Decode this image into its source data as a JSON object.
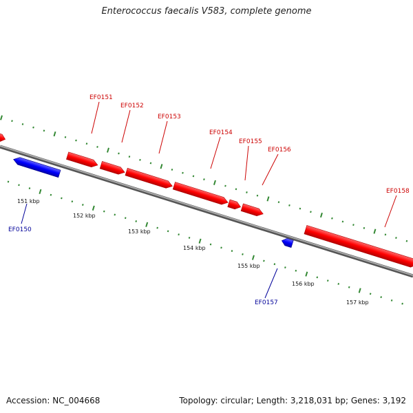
{
  "header": {
    "title": "Enterococcus faecalis V583, complete genome"
  },
  "footer": {
    "accession": "Accession: NC_004668",
    "summary": "Topology: circular; Length: 3,218,031 bp; Genes: 3,192"
  },
  "colors": {
    "forward_strand": "#ff0000",
    "reverse_strand": "#0000ff",
    "forward_label": "#cc0000",
    "reverse_label": "#000099",
    "ticks": "#338833",
    "backbone": "#888888"
  },
  "scale": {
    "tick_labels": [
      "151 kbp",
      "152 kbp",
      "153 kbp",
      "154 kbp",
      "155 kbp",
      "156 kbp",
      "157 kbp"
    ]
  },
  "genes": [
    {
      "label": "EF0150",
      "strand": "reverse"
    },
    {
      "label": "EF0151",
      "strand": "forward"
    },
    {
      "label": "EF0152",
      "strand": "forward"
    },
    {
      "label": "EF0153",
      "strand": "forward"
    },
    {
      "label": "EF0154",
      "strand": "forward"
    },
    {
      "label": "EF0155",
      "strand": "forward"
    },
    {
      "label": "EF0156",
      "strand": "forward"
    },
    {
      "label": "EF0157",
      "strand": "reverse"
    },
    {
      "label": "EF0158",
      "strand": "forward"
    }
  ]
}
